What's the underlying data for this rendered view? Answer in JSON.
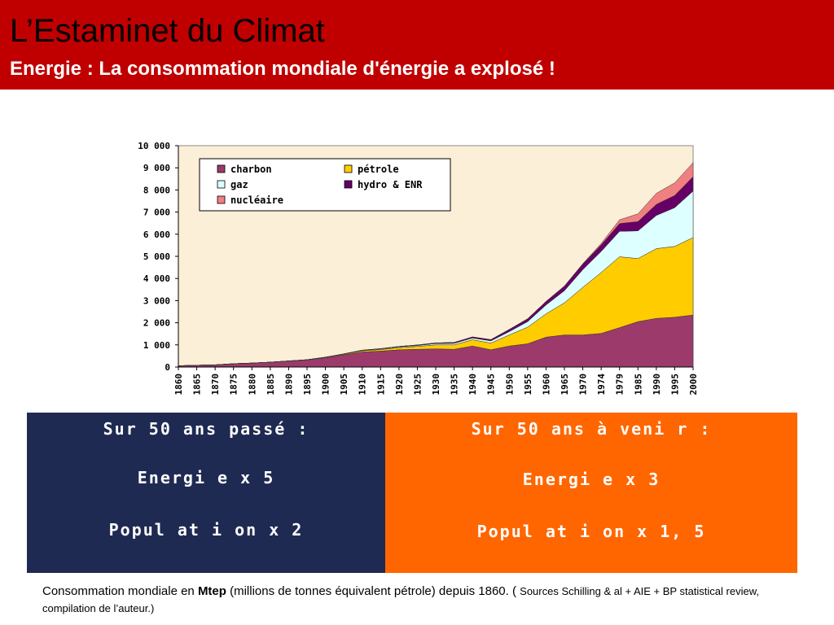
{
  "header": {
    "title": "L’Estaminet du Climat",
    "subtitle": "Energie : La consommation mondiale d'énergie a explosé !"
  },
  "colors": {
    "header_bg": "#c00000",
    "panel_left": "#1f2a52",
    "panel_right": "#ff6600",
    "plot_bg": "#fcefd8",
    "charbon": "#9b3a6b",
    "petrole": "#ffcc00",
    "gaz": "#ddffff",
    "hydro": "#660066",
    "nucleaire": "#f08080"
  },
  "chart_data": {
    "type": "area",
    "stacked": true,
    "x": [
      1860,
      1865,
      1870,
      1875,
      1880,
      1885,
      1890,
      1895,
      1900,
      1905,
      1910,
      1915,
      1920,
      1925,
      1930,
      1935,
      1940,
      1945,
      1950,
      1955,
      1960,
      1965,
      1970,
      1974,
      1979,
      1985,
      1990,
      1995,
      2000
    ],
    "ylim": [
      0,
      10000
    ],
    "yticks": [
      0,
      1000,
      2000,
      3000,
      4000,
      5000,
      6000,
      7000,
      8000,
      9000,
      10000
    ],
    "ytick_labels": [
      "0",
      "1 000",
      "2 000",
      "3 000",
      "4 000",
      "5 000",
      "6 000",
      "7 000",
      "8 000",
      "9 000",
      "10 000"
    ],
    "grid": false,
    "legend_position": "top-left",
    "series": [
      {
        "name": "charbon",
        "color": "#9b3a6b",
        "values": [
          60,
          80,
          100,
          150,
          180,
          220,
          270,
          320,
          420,
          550,
          680,
          720,
          780,
          800,
          820,
          800,
          950,
          780,
          950,
          1050,
          1350,
          1450,
          1450,
          1520,
          1780,
          2050,
          2200,
          2250,
          2350
        ]
      },
      {
        "name": "pétrole",
        "color": "#ffcc00",
        "values": [
          0,
          0,
          0,
          0,
          0,
          0,
          5,
          10,
          20,
          30,
          50,
          70,
          100,
          130,
          180,
          200,
          280,
          300,
          500,
          750,
          1050,
          1450,
          2150,
          2750,
          3200,
          2850,
          3150,
          3200,
          3500
        ]
      },
      {
        "name": "gaz",
        "color": "#ddffff",
        "values": [
          0,
          0,
          0,
          0,
          0,
          0,
          0,
          0,
          5,
          10,
          20,
          25,
          30,
          40,
          60,
          70,
          80,
          100,
          150,
          250,
          400,
          550,
          800,
          950,
          1150,
          1250,
          1500,
          1750,
          2100
        ]
      },
      {
        "name": "hydro & ENR",
        "color": "#660066",
        "values": [
          0,
          0,
          0,
          0,
          0,
          0,
          0,
          0,
          0,
          5,
          10,
          15,
          20,
          25,
          30,
          40,
          50,
          60,
          100,
          130,
          160,
          200,
          250,
          300,
          350,
          420,
          500,
          550,
          650
        ]
      },
      {
        "name": "nucléaire",
        "color": "#f08080",
        "values": [
          0,
          0,
          0,
          0,
          0,
          0,
          0,
          0,
          0,
          0,
          0,
          0,
          0,
          0,
          0,
          0,
          0,
          0,
          0,
          0,
          5,
          10,
          20,
          60,
          170,
          350,
          500,
          570,
          630
        ]
      }
    ]
  },
  "panel_left": {
    "line1": "Sur 50 ans passé :",
    "line2": "Energi e x 5",
    "line3": "Popul at i on x 2"
  },
  "panel_right": {
    "line1": "Sur 50 ans à veni r :",
    "line2": "Energi e x 3",
    "line3": "Popul at i on x 1, 5"
  },
  "caption": {
    "part1": "Consommation mondiale en ",
    "bold": "Mtep",
    "part2": " (millions de tonnes équivalent pétrole) depuis 1860. ( ",
    "sources": "Sources Schilling & al + AIE + BP statistical review, compilation de l’auteur.)"
  }
}
